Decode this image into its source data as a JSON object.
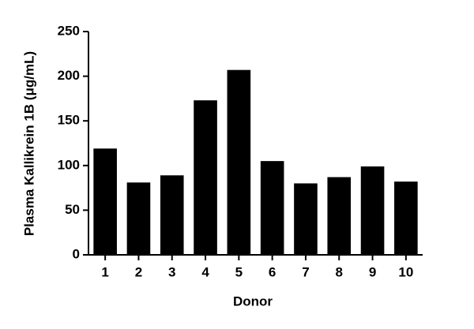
{
  "chart_data": {
    "type": "bar",
    "x_label": "Donor",
    "y_label": "Plasma Kallikrein 1B (μg/mL)",
    "categories": [
      "1",
      "2",
      "3",
      "4",
      "5",
      "6",
      "7",
      "8",
      "9",
      "10"
    ],
    "values": [
      119,
      81,
      89,
      173,
      207,
      105,
      80,
      87,
      99,
      82
    ],
    "color": "#000000",
    "ylim": [
      0,
      250
    ],
    "yticks": [
      0,
      50,
      100,
      150,
      200,
      250
    ],
    "grid": false
  }
}
